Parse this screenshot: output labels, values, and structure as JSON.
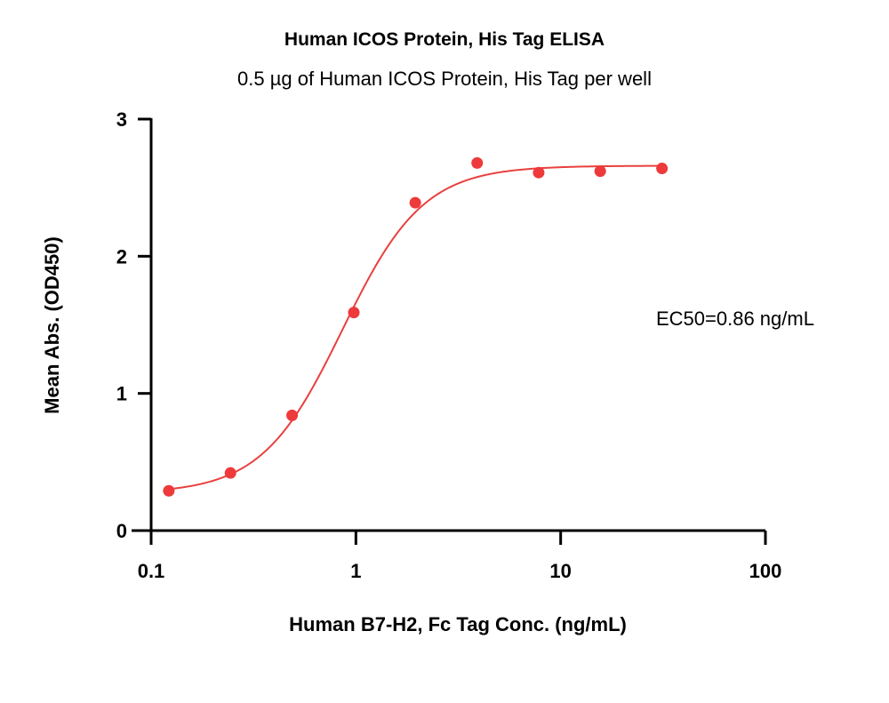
{
  "chart_data": {
    "type": "scatter",
    "title": "Human ICOS Protein, His Tag ELISA",
    "subtitle": "0.5 µg of Human ICOS Protein, His Tag per well",
    "xlabel": "Human B7-H2, Fc Tag Conc. (ng/mL)",
    "ylabel": "Mean Abs. (OD450)",
    "x_scale": "log",
    "xlim": [
      0.1,
      100
    ],
    "ylim": [
      0,
      3
    ],
    "x_ticks": [
      0.1,
      1,
      10,
      100
    ],
    "x_tick_labels": [
      "0.1",
      "1",
      "10",
      "100"
    ],
    "y_ticks": [
      0,
      1,
      2,
      3
    ],
    "y_tick_labels": [
      "0",
      "1",
      "2",
      "3"
    ],
    "series": [
      {
        "x": [
          0.122,
          0.244,
          0.488,
          0.977,
          1.95,
          3.91,
          7.81,
          15.6,
          31.25
        ],
        "y": [
          0.29,
          0.42,
          0.84,
          1.59,
          2.39,
          2.68,
          2.61,
          2.62,
          2.64
        ]
      }
    ],
    "fit": {
      "bottom": 0.27,
      "top": 2.66,
      "ec50": 0.86,
      "hill": 2.2
    },
    "annotation": "EC50=0.86 ng/mL",
    "colors": {
      "points": "#ee3a3b",
      "curve": "#e8413f",
      "axes": "#000000"
    },
    "grid": false,
    "legend": "none"
  }
}
